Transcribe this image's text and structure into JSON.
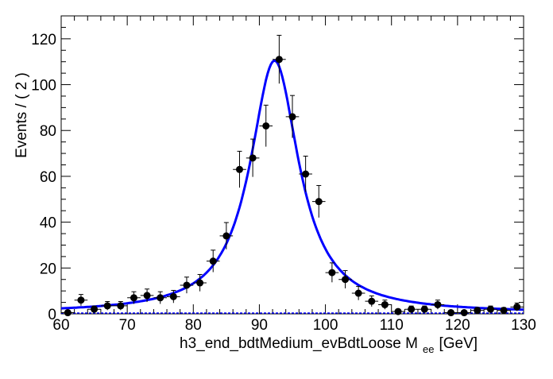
{
  "chart_data": {
    "type": "scatter",
    "title": "",
    "xlabel": "h3_end_bdtMedium_evBdtLoose  M",
    "xlabel_sub": "ee",
    "xlabel_unit": "[GeV]",
    "ylabel": "Events / ( 2 )",
    "xlim": [
      60,
      130
    ],
    "ylim": [
      0,
      130
    ],
    "xticks": [
      60,
      70,
      80,
      90,
      100,
      110,
      120,
      130
    ],
    "xtick_labels": [
      "60",
      "70",
      "80",
      "90",
      "100",
      "110",
      "120",
      "130"
    ],
    "yticks": [
      0,
      20,
      40,
      60,
      80,
      100,
      120
    ],
    "ytick_labels": [
      "0",
      "20",
      "40",
      "60",
      "80",
      "100",
      "120"
    ],
    "bin_width": 2,
    "x": [
      61,
      63,
      65,
      67,
      69,
      71,
      73,
      75,
      77,
      79,
      81,
      83,
      85,
      87,
      89,
      91,
      93,
      95,
      97,
      99,
      101,
      103,
      105,
      107,
      109,
      111,
      113,
      115,
      117,
      119,
      121,
      123,
      125,
      127,
      129
    ],
    "y": [
      0.5,
      6,
      2,
      3.5,
      3.5,
      7,
      8,
      7,
      7.5,
      12.5,
      13.5,
      23,
      34,
      63,
      68,
      82,
      111,
      86,
      61,
      49,
      18,
      15,
      9,
      5.5,
      4,
      1,
      2,
      2,
      4,
      0.5,
      0.5,
      1.5,
      2,
      1.5,
      3
    ],
    "fit": {
      "name": "fit",
      "model": "lorentzian",
      "peak": 110.5,
      "mean": 92.3,
      "gamma": 4.5,
      "background": 0.3,
      "color": "#0000ff"
    },
    "marker_color": "#000000"
  }
}
